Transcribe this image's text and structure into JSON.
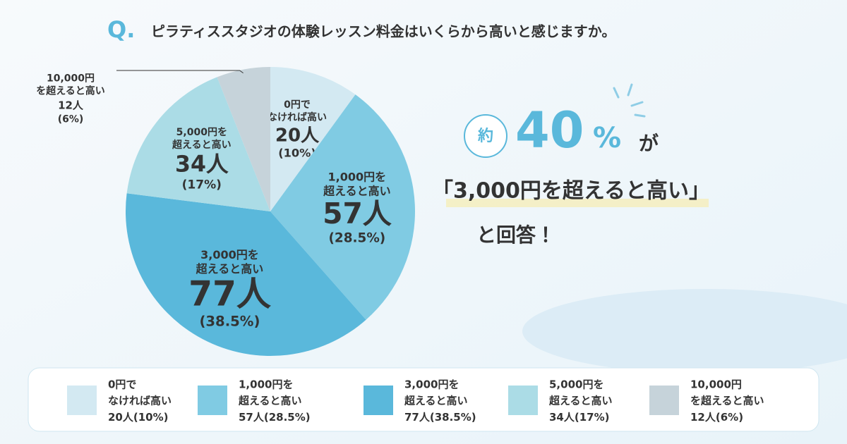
{
  "chart_data": {
    "type": "pie",
    "title_mark": "Q.",
    "title": "ピラティススタジオの体験レッスン料金はいくらから高いと感じますか。",
    "categories": [
      [
        "0円で",
        "なければ高い"
      ],
      [
        "1,000円を",
        "超えると高い"
      ],
      [
        "3,000円を",
        "超えると高い"
      ],
      [
        "5,000円を",
        "超えると高い"
      ],
      [
        "10,000円",
        "を超えると高い"
      ]
    ],
    "values": [
      20,
      57,
      77,
      34,
      12
    ],
    "value_labels": [
      "20人",
      "57人",
      "77人",
      "34人",
      "12人"
    ],
    "percents": [
      10,
      28.5,
      38.5,
      17,
      6
    ],
    "percent_labels": [
      "(10%)",
      "(28.5%)",
      "(38.5%)",
      "(17%)",
      "(6%)"
    ],
    "colors": [
      "#d3e9f2",
      "#80cbe3",
      "#5ab8db",
      "#abdce6",
      "#c6d3da"
    ],
    "annotations": [
      "約",
      "40",
      "%",
      "が",
      "「3,000円を超えると高い」",
      "と回答！"
    ]
  }
}
